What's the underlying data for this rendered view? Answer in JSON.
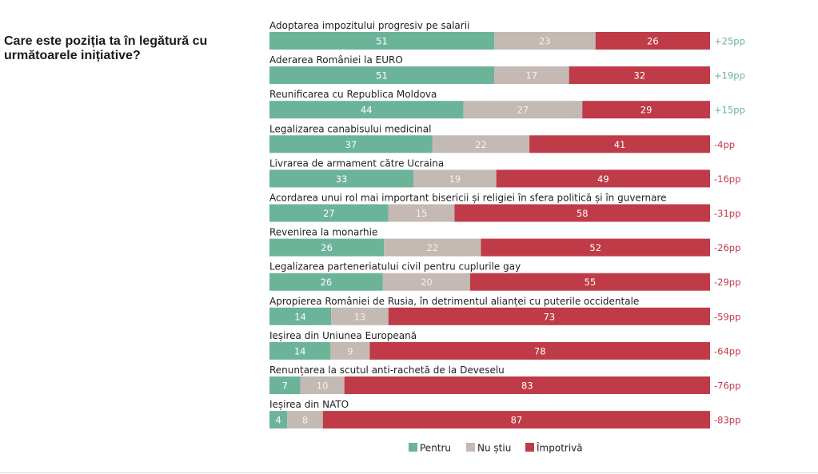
{
  "title": "Care este poziția ta în legătură cu următoarele inițiative?",
  "chart_data": {
    "type": "bar",
    "orientation": "horizontal",
    "stacked": true,
    "normalized": true,
    "title": "Care este poziția ta în legătură cu următoarele inițiative?",
    "xlabel": "",
    "ylabel": "",
    "legend_position": "bottom",
    "categories": [
      "Adoptarea impozitului progresiv pe salarii",
      "Aderarea României la EURO",
      "Reunificarea cu Republica Moldova",
      "Legalizarea canabisului medicinal",
      "Livrarea de armament către Ucraina",
      "Acordarea unui rol mai important bisericii și religiei în sfera politică și în guvernare",
      "Revenirea la monarhie",
      "Legalizarea parteneriatului civil pentru cuplurile gay",
      "Apropierea României de Rusia, în detrimentul alianței cu puterile occidentale",
      "Ieșirea din Uniunea Europeană",
      "Renunțarea la scutul anti-rachetă de la Deveselu",
      "Ieșirea din NATO"
    ],
    "series": [
      {
        "name": "Pentru",
        "color": "#6bb49a",
        "values": [
          51,
          51,
          44,
          37,
          33,
          27,
          26,
          26,
          14,
          14,
          7,
          4
        ]
      },
      {
        "name": "Nu știu",
        "color": "#c4b9b3",
        "values": [
          23,
          17,
          27,
          22,
          19,
          15,
          22,
          20,
          13,
          9,
          10,
          8
        ]
      },
      {
        "name": "Împotrivă",
        "color": "#bf3b48",
        "values": [
          26,
          32,
          29,
          41,
          49,
          58,
          52,
          55,
          73,
          78,
          83,
          87
        ]
      }
    ],
    "net_labels": [
      "+25pp",
      "+19pp",
      "+15pp",
      "-4pp",
      "-16pp",
      "-31pp",
      "-26pp",
      "-29pp",
      "-59pp",
      "-64pp",
      "-76pp",
      "-83pp"
    ],
    "net_colors": {
      "positive": "#6bb49a",
      "negative": "#bf3b48"
    }
  }
}
